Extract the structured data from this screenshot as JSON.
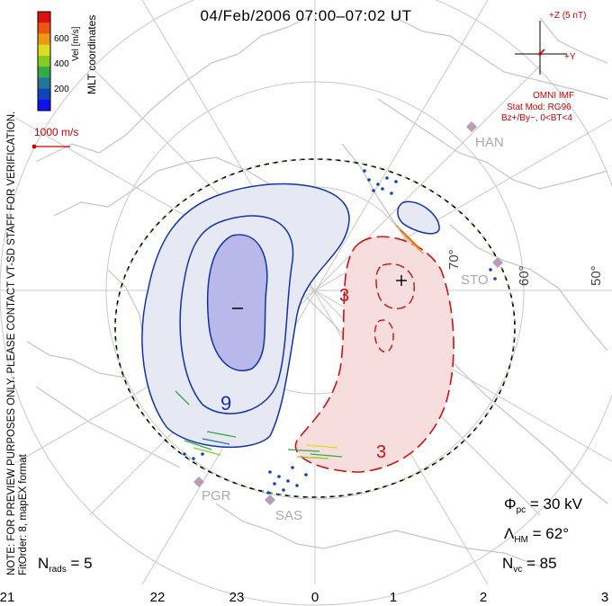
{
  "title": "04/Feb/2006  07:00–07:02  UT",
  "note_line1": "NOTE: FOR PREVIEW PURPOSES ONLY. PLEASE CONTACT VT-SD STAFF FOR VERIFICATION.",
  "note_line2": "FitOrder: 8,  mapEX format",
  "colorbar": {
    "label": "Vel [m/s]",
    "coordinate_label": "MLT coordinates",
    "ticks": [
      "600",
      "400",
      "200"
    ],
    "colors": [
      "#dd1111",
      "#ee5511",
      "#ee9911",
      "#dddd22",
      "#88cc22",
      "#33aa44",
      "#227799",
      "#1144bb",
      "#1111ee"
    ]
  },
  "vector_scale": "1000 m/s",
  "imf": {
    "z_label": "+Z (5 nT)",
    "y_label": "+Y",
    "source": "OMNI IMF",
    "stat_mod": "Stat Mod: RG96",
    "condition": "Bz+/By−, 0<BT<4"
  },
  "stations": [
    "HAN",
    "STO",
    "PGR",
    "SAS"
  ],
  "latitude_labels": [
    "70°",
    "60°",
    "50°"
  ],
  "contour_labels": {
    "negative": "9",
    "positive_upper": "3",
    "positive_lower": "3",
    "min_marker": "−",
    "max_marker": "+"
  },
  "stats": {
    "phi_pc": {
      "symbol": "Φ",
      "sub": "pc",
      "value": "= 30 kV"
    },
    "lambda_hm": {
      "symbol": "Λ",
      "sub": "HM",
      "value": "= 62°"
    },
    "n_vc": {
      "symbol": "N",
      "sub": "vc",
      "value": "= 85"
    },
    "n_rads": {
      "symbol": "N",
      "sub": "rads",
      "value": "= 5"
    }
  },
  "x_axis_ticks": [
    "21",
    "22",
    "23",
    "0",
    "1",
    "2",
    "3"
  ],
  "colors": {
    "negative_fill": "#e6e8f3",
    "negative_inner": "#b8b8ea",
    "negative_line": "#1133aa",
    "positive_fill": "#f6dede",
    "positive_line": "#cc1111",
    "coast": "#c4c4c4",
    "grid": "#c8c8c8"
  }
}
